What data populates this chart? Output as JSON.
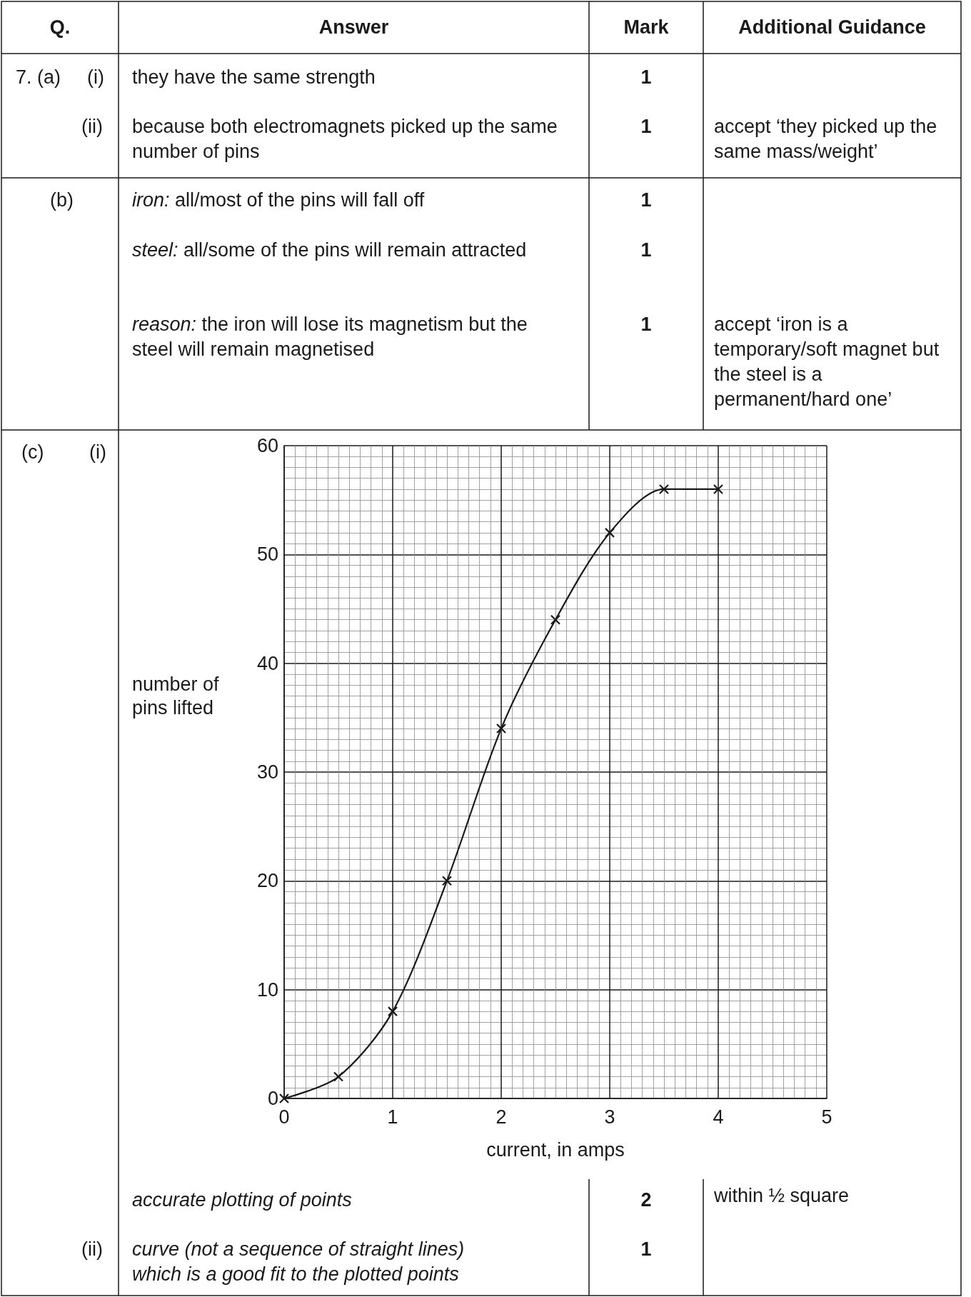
{
  "chart_data": {
    "type": "line",
    "xlabel": "current, in amps",
    "ylabel": "number of\npins lifted",
    "x": [
      0,
      0.5,
      1,
      1.5,
      2,
      2.5,
      3,
      3.5,
      4
    ],
    "series": [
      {
        "color": "#1a1a1a",
        "values": [
          0,
          2,
          8,
          20,
          34,
          44,
          52,
          56,
          56
        ]
      }
    ],
    "xlim": [
      0,
      5
    ],
    "ylim": [
      0,
      60
    ],
    "xticks": [
      0,
      1,
      2,
      3,
      4,
      5
    ],
    "yticks": [
      0,
      10,
      20,
      30,
      40,
      50,
      60
    ],
    "grid": true,
    "marker": "cross",
    "line_style": "solid",
    "annotations": [
      "Q.",
      "Answer",
      "Mark",
      "Additional Guidance",
      "7. (a)",
      "(i)",
      "they have the same strength",
      "1",
      "(ii)",
      "because both electromagnets picked up the same number of pins",
      "1",
      "accept ‘they picked up the same mass/weight’",
      "(b)",
      "iron:",
      "all/most of the pins will fall off",
      "1",
      "steel:",
      "all/some of the pins will remain attracted",
      "1",
      "reason:",
      "the iron will lose its magnetism but the steel will remain magnetised",
      "1",
      "accept ‘iron is a temporary/soft magnet but the steel is a permanent/hard one’",
      "(c)",
      "(i)",
      "accurate plotting of points",
      "2",
      "within ½ square",
      "(ii)",
      "curve (not a sequence of straight lines) which is a good fit to the plotted points",
      "1"
    ]
  }
}
